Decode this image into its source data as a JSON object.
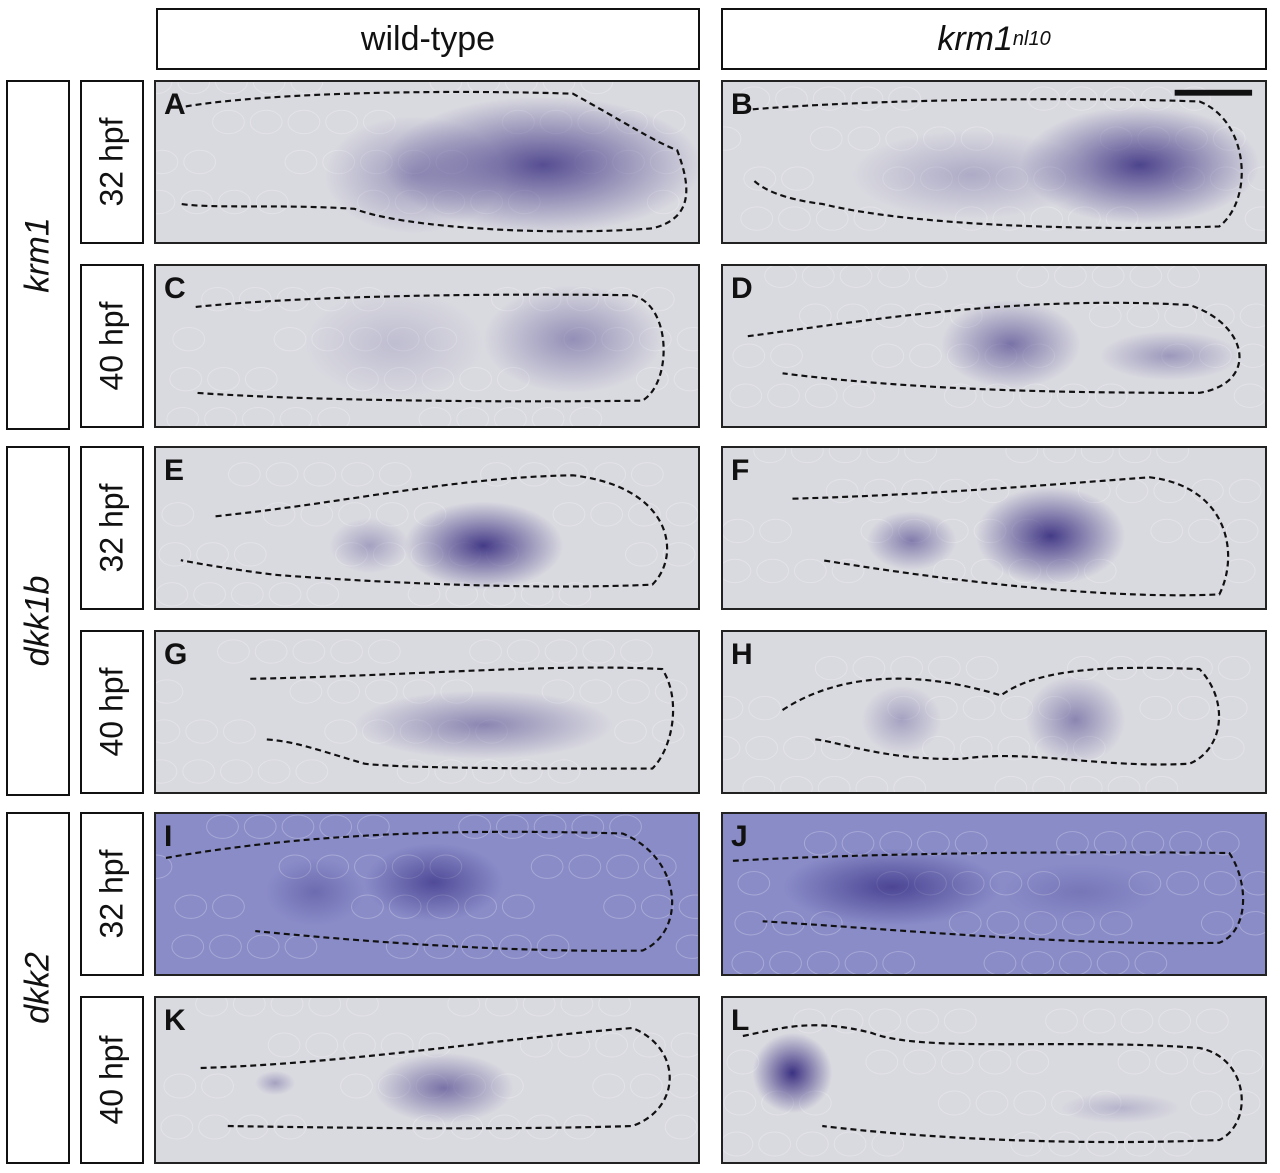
{
  "columns": [
    {
      "label": "wild-type"
    },
    {
      "label": "krm1",
      "sup": "nl10"
    }
  ],
  "genes": [
    "krm1",
    "dkk1b",
    "dkk2"
  ],
  "times": [
    "32 hpf",
    "40 hpf",
    "32 hpf",
    "40 hpf",
    "32 hpf",
    "40 hpf"
  ],
  "panels": [
    "A",
    "B",
    "C",
    "D",
    "E",
    "F",
    "G",
    "H",
    "I",
    "J",
    "K",
    "L"
  ],
  "colors": {
    "stain": "#2a1f78",
    "background": "#d9d9e0",
    "dkk2_background": "#8a8cc8"
  }
}
